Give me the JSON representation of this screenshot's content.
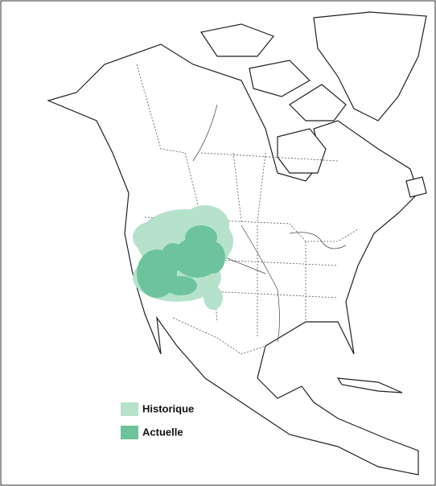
{
  "legend": {
    "items": [
      {
        "label": "Historique",
        "color": "#b6e2cb"
      },
      {
        "label": "Actuelle",
        "color": "#6dc49c"
      }
    ]
  }
}
